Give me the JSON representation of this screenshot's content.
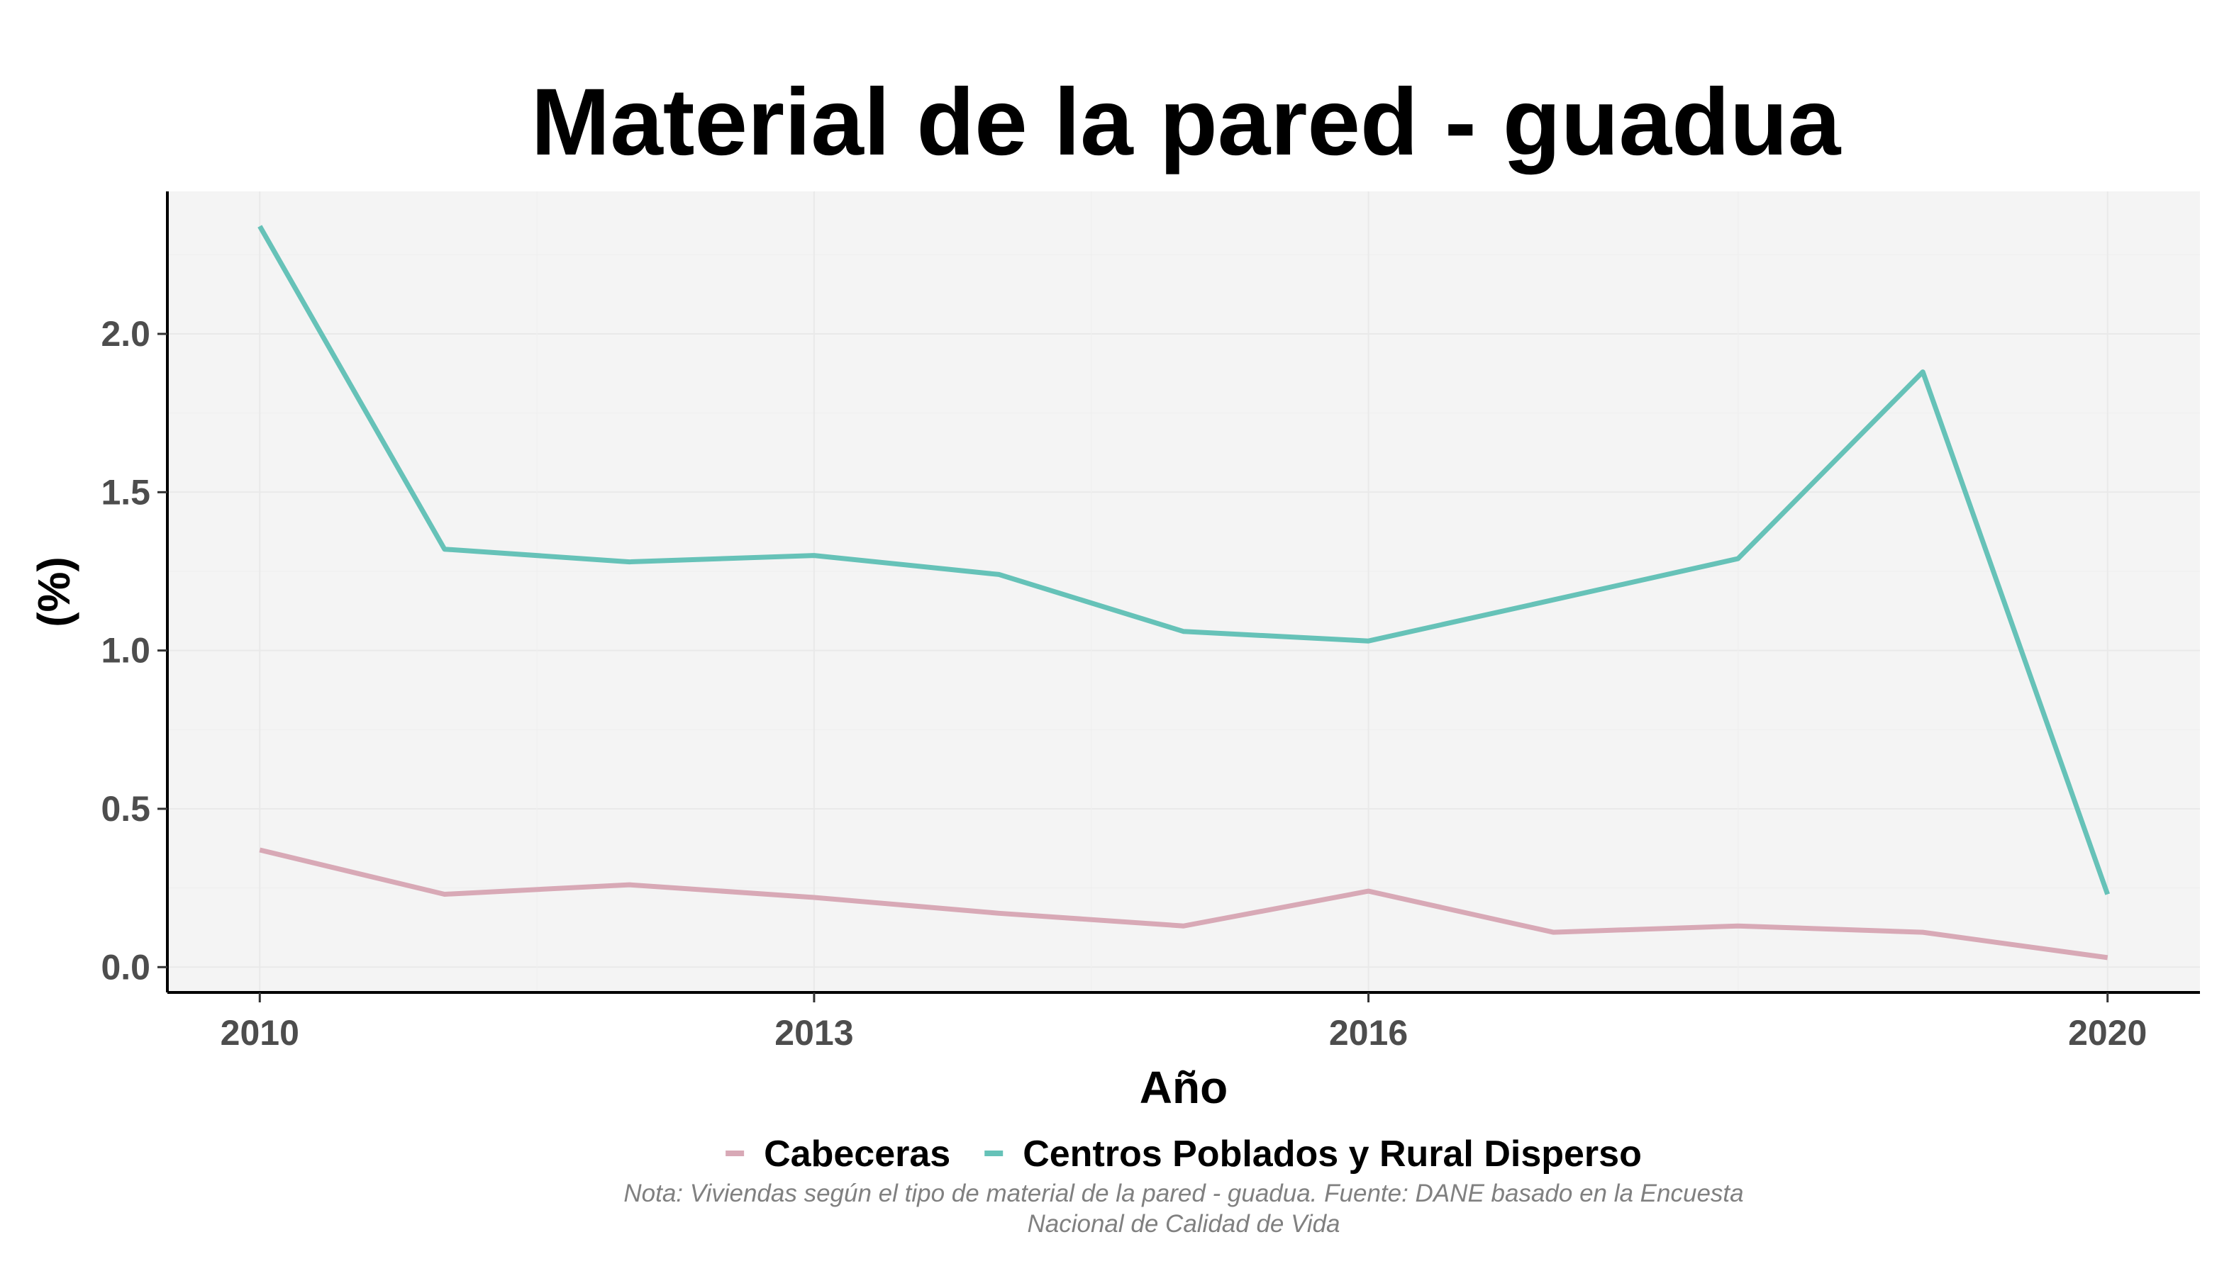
{
  "chart_data": {
    "type": "line",
    "title": "Material de la pared - guadua",
    "xlabel": "Año",
    "ylabel": "(%)",
    "x": [
      2010,
      2011,
      2012,
      2013,
      2014,
      2015,
      2016,
      2017,
      2018,
      2019,
      2020
    ],
    "xlim": [
      2009.5,
      2020.5
    ],
    "ylim": [
      -0.08,
      2.45
    ],
    "xticks": [
      2010,
      2013,
      2016,
      2020
    ],
    "xtick_labels": [
      "2010",
      "2013",
      "2016",
      "2020"
    ],
    "yticks": [
      0.0,
      0.5,
      1.0,
      1.5,
      2.0
    ],
    "ytick_labels": [
      "0.0",
      "0.5",
      "1.0",
      "1.5",
      "2.0"
    ],
    "grid": true,
    "legend_position": "bottom",
    "series": [
      {
        "name": "Cabeceras",
        "color": "#d8a9b6",
        "values": [
          0.37,
          0.23,
          0.26,
          0.22,
          0.17,
          0.13,
          0.24,
          0.11,
          0.13,
          0.11,
          0.03
        ]
      },
      {
        "name": "Centros Poblados y Rural Disperso",
        "color": "#66c2b8",
        "values": [
          2.34,
          1.32,
          1.28,
          1.3,
          1.24,
          1.06,
          1.03,
          1.16,
          1.29,
          1.88,
          0.23
        ]
      }
    ],
    "caption_lines": [
      "Nota: Viviendas según el tipo de material de la pared - guadua. Fuente: DANE basado en la Encuesta",
      "Nacional de Calidad de Vida"
    ]
  }
}
